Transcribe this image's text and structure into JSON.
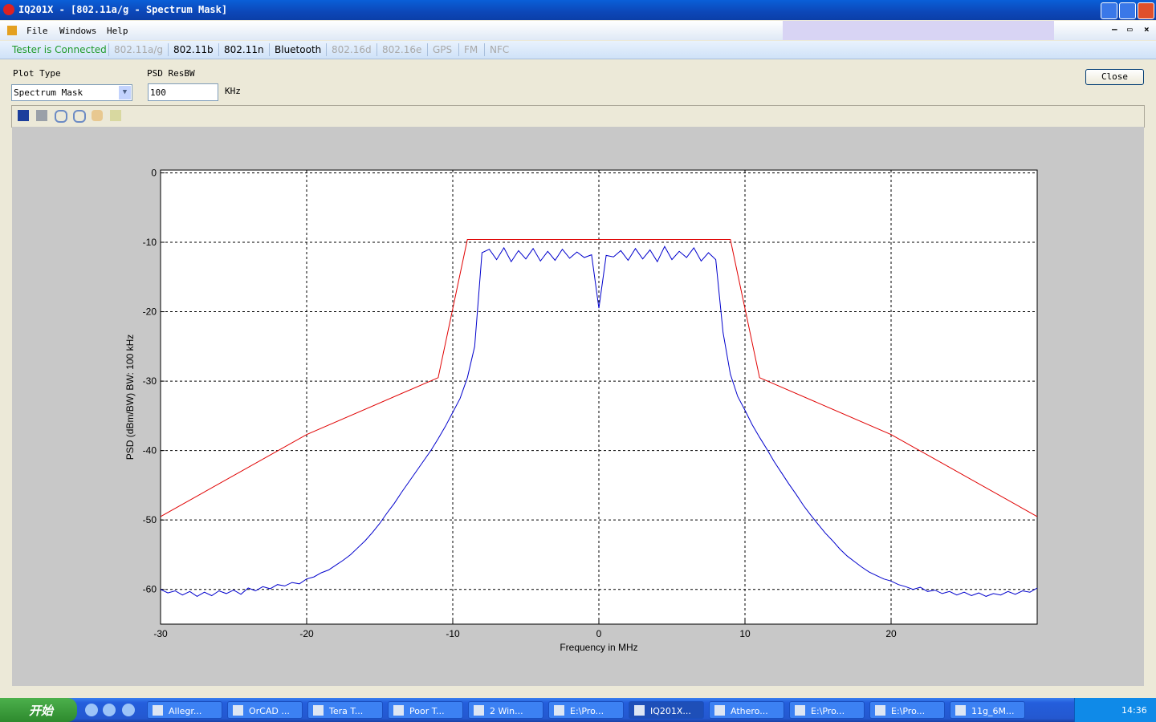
{
  "window": {
    "title": "IQ201X - [802.11a/g - Spectrum Mask]"
  },
  "menu": [
    "File",
    "Windows",
    "Help"
  ],
  "status": "Tester is Connected",
  "tabs": [
    {
      "label": "802.11a/g",
      "enabled": false
    },
    {
      "label": "802.11b",
      "enabled": true
    },
    {
      "label": "802.11n",
      "enabled": true
    },
    {
      "label": "Bluetooth",
      "enabled": true
    },
    {
      "label": "802.16d",
      "enabled": false
    },
    {
      "label": "802.16e",
      "enabled": false
    },
    {
      "label": "GPS",
      "enabled": false
    },
    {
      "label": "FM",
      "enabled": false
    },
    {
      "label": "NFC",
      "enabled": false
    }
  ],
  "controls": {
    "plot_type_label": "Plot Type",
    "plot_type_value": "Spectrum Mask",
    "psd_label": "PSD ResBW",
    "psd_value": "100",
    "psd_unit": "KHz",
    "close_button": "Close"
  },
  "taskbar": {
    "start": "开始",
    "items": [
      "Allegr...",
      "OrCAD ...",
      "Tera T...",
      "Poor T...",
      "2 Win...",
      "E:\\Pro...",
      "IQ201X...",
      "Athero...",
      "E:\\Pro...",
      "E:\\Pro...",
      "11g_6M..."
    ],
    "clock": "14:36"
  },
  "chart_data": {
    "type": "line",
    "x_label": "Frequency in MHz",
    "y_label": "PSD (dBm/BW) BW: 100 kHz",
    "xlim": [
      -30,
      30
    ],
    "ylim": [
      -65,
      0.4
    ],
    "xticks": [
      -30,
      -20,
      -10,
      0,
      10,
      20
    ],
    "yticks": [
      0,
      -10,
      -20,
      -30,
      -40,
      -50,
      -60
    ],
    "grid": true,
    "series": [
      {
        "color": "#e00000",
        "x": [
          -30,
          -20,
          -11,
          -9,
          9,
          11,
          20,
          30
        ],
        "values": [
          -49.5,
          -37.7,
          -29.5,
          -9.6,
          -9.6,
          -29.5,
          -37.7,
          -49.5
        ]
      },
      {
        "color": "#0000cc",
        "x": [
          -30,
          -29.5,
          -29,
          -28.5,
          -28,
          -27.5,
          -27,
          -26.5,
          -26,
          -25.5,
          -25,
          -24.5,
          -24,
          -23.5,
          -23,
          -22.5,
          -22,
          -21.5,
          -21,
          -20.5,
          -20,
          -19.5,
          -19,
          -18.5,
          -18,
          -17.5,
          -17,
          -16.5,
          -16,
          -15.5,
          -15,
          -14.5,
          -14,
          -13.5,
          -13,
          -12.5,
          -12,
          -11.5,
          -11,
          -10.5,
          -10,
          -9.5,
          -9,
          -8.5,
          -8,
          -7.5,
          -7,
          -6.5,
          -6,
          -5.5,
          -5,
          -4.5,
          -4,
          -3.5,
          -3,
          -2.5,
          -2,
          -1.5,
          -1,
          -0.5,
          0,
          0.5,
          1,
          1.5,
          2,
          2.5,
          3,
          3.5,
          4,
          4.5,
          5,
          5.5,
          6,
          6.5,
          7,
          7.5,
          8,
          8.5,
          9,
          9.5,
          10,
          10.5,
          11,
          11.5,
          12,
          12.5,
          13,
          13.5,
          14,
          14.5,
          15,
          15.5,
          16,
          16.5,
          17,
          17.5,
          18,
          18.5,
          19,
          19.5,
          20,
          20.5,
          21,
          21.5,
          22,
          22.5,
          23,
          23.5,
          24,
          24.5,
          25,
          25.5,
          26,
          26.5,
          27,
          27.5,
          28,
          28.5,
          29,
          29.5,
          30
        ],
        "values": [
          -60,
          -60.5,
          -60.2,
          -60.8,
          -60.3,
          -61,
          -60.4,
          -60.9,
          -60.2,
          -60.6,
          -60.1,
          -60.7,
          -59.8,
          -60.2,
          -59.6,
          -59.9,
          -59.3,
          -59.5,
          -59,
          -59.2,
          -58.5,
          -58.2,
          -57.6,
          -57.2,
          -56.5,
          -55.8,
          -55,
          -54,
          -53,
          -51.8,
          -50.5,
          -49,
          -47.6,
          -46,
          -44.5,
          -43,
          -41.5,
          -40,
          -38.3,
          -36.5,
          -34.5,
          -32.5,
          -29.5,
          -25,
          -11.5,
          -11,
          -12.5,
          -10.8,
          -12.8,
          -11.2,
          -12.4,
          -10.9,
          -12.7,
          -11.3,
          -12.6,
          -11,
          -12.3,
          -11.4,
          -12.2,
          -11.8,
          -19.5,
          -11.9,
          -12.1,
          -11.2,
          -12.6,
          -10.9,
          -12.4,
          -11.1,
          -12.8,
          -10.6,
          -12.5,
          -11.3,
          -12.2,
          -10.8,
          -12.7,
          -11.5,
          -12.5,
          -23,
          -29,
          -32.2,
          -34.2,
          -36.3,
          -38.1,
          -39.8,
          -41.6,
          -43.2,
          -44.8,
          -46.3,
          -47.9,
          -49.3,
          -50.6,
          -51.9,
          -53,
          -54.2,
          -55.2,
          -56,
          -56.8,
          -57.5,
          -58,
          -58.5,
          -58.8,
          -59.3,
          -59.6,
          -60,
          -59.7,
          -60.3,
          -60.1,
          -60.6,
          -60.3,
          -60.8,
          -60.4,
          -60.9,
          -60.5,
          -61,
          -60.6,
          -60.8,
          -60.3,
          -60.7,
          -60.2,
          -60.4,
          -59.8
        ]
      }
    ]
  }
}
